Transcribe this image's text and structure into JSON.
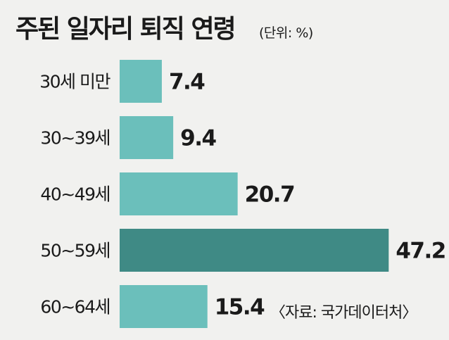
{
  "chart_data": {
    "type": "bar",
    "orientation": "horizontal",
    "title": "주된 일자리 퇴직 연령",
    "unit_note": "(단위: %)",
    "categories": [
      "30세 미만",
      "30~39세",
      "40~49세",
      "50~59세",
      "60~64세"
    ],
    "values": [
      7.4,
      9.4,
      20.7,
      47.2,
      15.4
    ],
    "value_labels": [
      "7.4",
      "9.4",
      "20.7",
      "47.2",
      "15.4"
    ],
    "highlight_index": 3,
    "xlim": [
      0,
      50
    ],
    "grid": false,
    "source": "〈자료: 국가데이터처〉",
    "colors": {
      "bar": "#6bbfbb",
      "highlight": "#3f8a85",
      "background": "#f1f1ef"
    }
  }
}
